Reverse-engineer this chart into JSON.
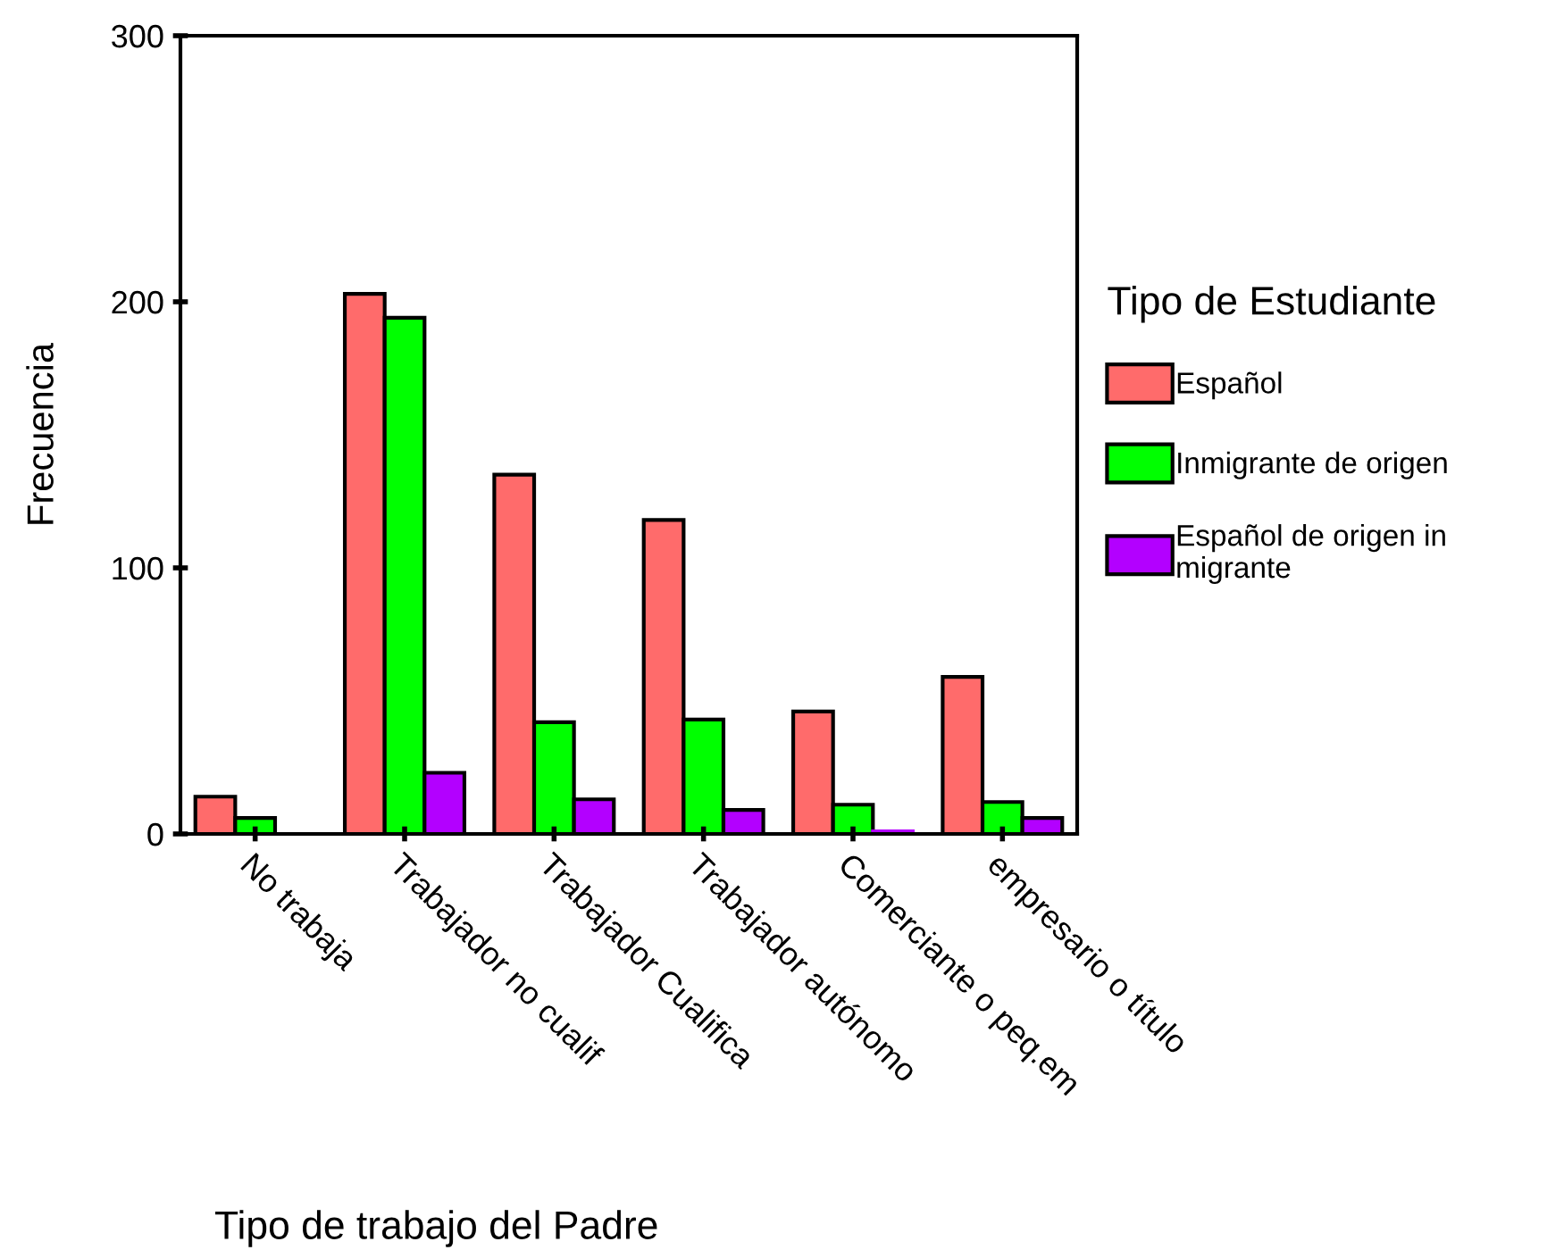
{
  "chart_data": {
    "type": "bar",
    "xlabel": "Tipo de trabajo del Padre",
    "ylabel": "Frecuencia",
    "legend_title": "Tipo de Estudiante",
    "categories": [
      "No trabaja",
      "Trabajador no cualif",
      "Trabajador Cualifica",
      "Trabajador autónomo",
      "Comerciante o peq.em",
      "empresario o título"
    ],
    "series": [
      {
        "name": "Español",
        "color": "#ff6b6b",
        "values": [
          14,
          203,
          135,
          118,
          46,
          59
        ]
      },
      {
        "name": "Inmigrante de origen",
        "color": "#00ff00",
        "values": [
          6,
          194,
          42,
          43,
          11,
          12
        ]
      },
      {
        "name": "Español de origen in\nmigrante",
        "color": "#b300ff",
        "values": [
          0,
          23,
          13,
          9,
          1,
          6
        ]
      }
    ],
    "ylim": [
      0,
      300
    ],
    "yticks": [
      0,
      100,
      200,
      300
    ],
    "grid": false,
    "legend": "right"
  }
}
